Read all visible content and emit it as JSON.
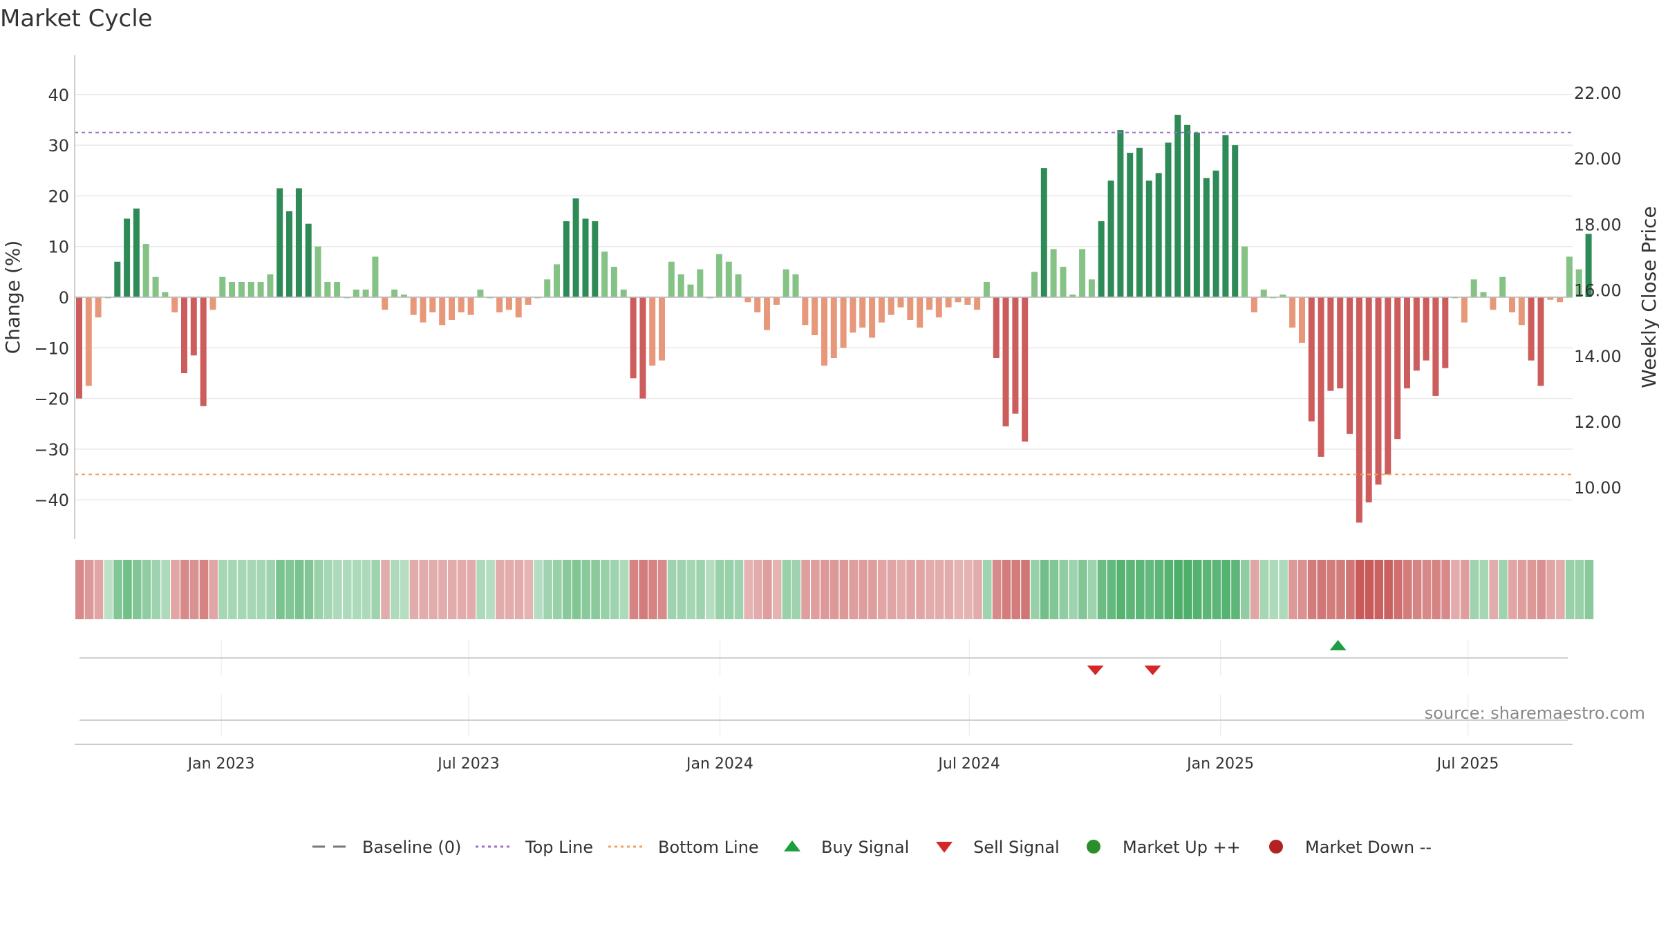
{
  "chart_data": {
    "type": "bar",
    "title": "Market Cycle",
    "ylabel": "Change (%)",
    "y2label": "Weekly Close Price",
    "ylim": [
      -48,
      48
    ],
    "y2lim": [
      8.6,
      22.6
    ],
    "yticks": [
      "40",
      "30",
      "20",
      "10",
      "0",
      "−10",
      "−20",
      "−30",
      "−40"
    ],
    "y2ticks": [
      "22.00",
      "20.00",
      "18.00",
      "16.00",
      "14.00",
      "12.00",
      "10.00"
    ],
    "xticks": [
      {
        "label": "Jan 2023",
        "week": 14.7
      },
      {
        "label": "Jul 2023",
        "week": 40.6
      },
      {
        "label": "Jan 2024",
        "week": 66.9
      },
      {
        "label": "Jul 2024",
        "week": 93.0
      },
      {
        "label": "Jan 2025",
        "week": 119.3
      },
      {
        "label": "Jul 2025",
        "week": 145.2
      }
    ],
    "top_line": 32.5,
    "bottom_line": -35,
    "values": [
      -20,
      -17.5,
      -4,
      0,
      7,
      15.5,
      17.5,
      10.5,
      4,
      1,
      -3,
      -15,
      -11.5,
      -21.5,
      -2.5,
      4,
      3,
      3,
      3,
      3,
      4.5,
      21.5,
      17,
      21.5,
      14.5,
      10,
      3,
      3,
      0,
      1.5,
      1.5,
      8,
      -2.5,
      1.5,
      0.5,
      -3.5,
      -5,
      -3,
      -5.5,
      -4.5,
      -3,
      -3.5,
      1.5,
      0,
      -3,
      -2.5,
      -4,
      -1.5,
      0,
      3.5,
      6.5,
      15,
      19.5,
      15.5,
      15,
      9,
      6,
      1.5,
      -16,
      -20,
      -13.5,
      -12.5,
      7,
      4.5,
      2.5,
      5.5,
      0,
      8.5,
      7,
      4.5,
      -1,
      -3,
      -6.5,
      -1.5,
      5.5,
      4.5,
      -5.5,
      -7.5,
      -13.5,
      -12,
      -10,
      -7,
      -6,
      -8,
      -5,
      -3.5,
      -2,
      -4.5,
      -6,
      -2.5,
      -4,
      -2,
      -1,
      -1.5,
      -2.5,
      3,
      -12,
      -25.5,
      -23,
      -28.5,
      5,
      25.5,
      9.5,
      6,
      0.5,
      9.5,
      3.5,
      15,
      23,
      33,
      28.5,
      29.5,
      23,
      24.5,
      30.5,
      36,
      34,
      32.5,
      23.5,
      25,
      32,
      30,
      10,
      -3,
      1.5,
      0,
      0.5,
      -6,
      -9,
      -24.5,
      -31.5,
      -18.5,
      -18,
      -27,
      -44.5,
      -40.5,
      -37,
      -35,
      -28,
      -18,
      -14.5,
      -12.5,
      -19.5,
      -14,
      0,
      -5,
      3.5,
      1,
      -2.5,
      4,
      -3,
      -5.5,
      -12.5,
      -17.5,
      -0.5,
      -1,
      8,
      5.5,
      12.5
    ],
    "strength": [
      -2,
      -1,
      -1,
      0,
      2,
      2,
      2,
      1,
      1,
      1,
      -1,
      -2,
      -2,
      -2,
      -1,
      1,
      1,
      1,
      1,
      1,
      1,
      2,
      2,
      2,
      2,
      1,
      1,
      1,
      1,
      1,
      1,
      1,
      -1,
      1,
      1,
      -1,
      -1,
      -1,
      -1,
      -1,
      -1,
      -1,
      1,
      1,
      -1,
      -1,
      -1,
      -1,
      1,
      1,
      1,
      2,
      2,
      2,
      2,
      1,
      1,
      1,
      -2,
      -2,
      -1,
      -1,
      1,
      1,
      1,
      1,
      1,
      1,
      1,
      1,
      -1,
      -1,
      -1,
      -1,
      1,
      1,
      -1,
      -1,
      -1,
      -1,
      -1,
      -1,
      -1,
      -1,
      -1,
      -1,
      -1,
      -1,
      -1,
      -1,
      -1,
      -1,
      -1,
      -1,
      -1,
      1,
      -2,
      -2,
      -2,
      -2,
      1,
      2,
      1,
      1,
      1,
      1,
      1,
      2,
      2,
      2,
      2,
      2,
      2,
      2,
      2,
      2,
      2,
      2,
      2,
      2,
      2,
      2,
      1,
      -1,
      1,
      1,
      1,
      -1,
      -1,
      -2,
      -2,
      -2,
      -2,
      -2,
      -2,
      -2,
      -2,
      -2,
      -2,
      -2,
      -2,
      -2,
      -2,
      -2,
      1,
      -1,
      1,
      1,
      -1,
      1,
      -1,
      -1,
      -2,
      -2,
      -1,
      -1,
      1,
      1,
      2
    ],
    "heat": [
      -0.5,
      -0.4,
      -0.3,
      0.1,
      0.5,
      0.6,
      0.5,
      0.4,
      0.3,
      0.2,
      -0.3,
      -0.5,
      -0.45,
      -0.55,
      -0.3,
      0.25,
      0.25,
      0.25,
      0.25,
      0.25,
      0.3,
      0.55,
      0.5,
      0.55,
      0.5,
      0.35,
      0.25,
      0.2,
      0.2,
      0.2,
      0.2,
      0.3,
      -0.25,
      0.2,
      0.15,
      -0.25,
      -0.25,
      -0.25,
      -0.25,
      -0.25,
      -0.25,
      -0.25,
      0.2,
      0.15,
      -0.25,
      -0.25,
      -0.25,
      -0.2,
      0.15,
      0.3,
      0.35,
      0.45,
      0.5,
      0.45,
      0.45,
      0.35,
      0.3,
      0.2,
      -0.55,
      -0.6,
      -0.55,
      -0.5,
      0.3,
      0.3,
      0.25,
      0.3,
      0.15,
      0.35,
      0.35,
      0.3,
      -0.2,
      -0.25,
      -0.35,
      -0.2,
      0.35,
      0.3,
      -0.35,
      -0.35,
      -0.4,
      -0.4,
      -0.4,
      -0.35,
      -0.35,
      -0.35,
      -0.3,
      -0.3,
      -0.25,
      -0.3,
      -0.3,
      -0.25,
      -0.25,
      -0.25,
      -0.2,
      -0.2,
      -0.25,
      0.3,
      -0.5,
      -0.6,
      -0.6,
      -0.65,
      0.35,
      0.6,
      0.5,
      0.4,
      0.3,
      0.5,
      0.3,
      0.65,
      0.7,
      0.8,
      0.75,
      0.75,
      0.7,
      0.75,
      0.8,
      0.85,
      0.85,
      0.8,
      0.75,
      0.75,
      0.8,
      0.75,
      0.4,
      -0.3,
      0.25,
      0.2,
      0.2,
      -0.4,
      -0.45,
      -0.6,
      -0.65,
      -0.6,
      -0.6,
      -0.65,
      -0.85,
      -0.85,
      -0.8,
      -0.8,
      -0.7,
      -0.6,
      -0.55,
      -0.5,
      -0.55,
      -0.5,
      -0.25,
      -0.35,
      0.3,
      0.25,
      -0.25,
      0.3,
      -0.3,
      -0.35,
      -0.4,
      -0.45,
      -0.3,
      -0.25,
      0.35,
      0.35,
      0.45
    ],
    "sell_signals": [
      106.2,
      112.2
    ],
    "buy_signals": [
      131.6
    ],
    "legend": {
      "placement": "bottom",
      "items": [
        {
          "label": "Baseline (0)",
          "kind": "dash",
          "color": "#777777"
        },
        {
          "label": "Top Line",
          "kind": "dot",
          "color": "#9b6fc4"
        },
        {
          "label": "Bottom Line",
          "kind": "dot",
          "color": "#f0a060"
        },
        {
          "label": "Buy Signal",
          "kind": "up",
          "color": "#1e9e3e"
        },
        {
          "label": "Sell Signal",
          "kind": "down",
          "color": "#d62728"
        },
        {
          "label": "Market Up ++",
          "kind": "circle",
          "color": "#2a8f2a"
        },
        {
          "label": "Market Down --",
          "kind": "circle",
          "color": "#b22222"
        }
      ]
    },
    "colors": {
      "strong_up": "#2e8b57",
      "up": "#85c285",
      "down": "#e8987a",
      "strong_down": "#cd5c5c"
    },
    "source": "source: sharemaestro.com"
  }
}
